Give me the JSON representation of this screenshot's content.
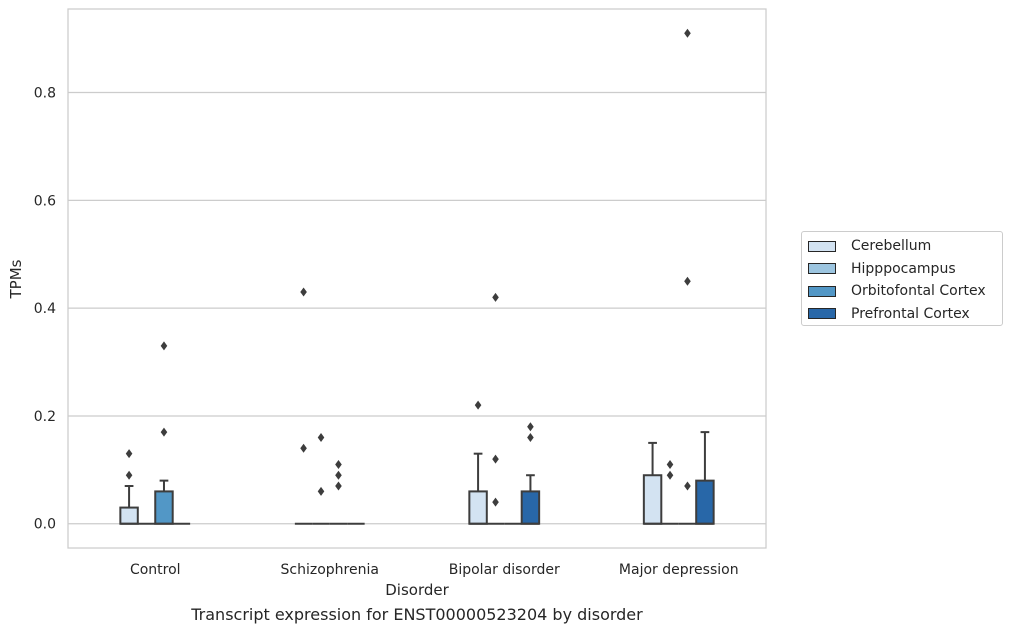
{
  "chart_data": {
    "type": "box",
    "caption": "Transcript expression for ENST00000523204 by disorder",
    "xlabel": "Disorder",
    "ylabel": "TPMs",
    "ylim": [
      -0.045,
      0.955
    ],
    "yticks": [
      0.0,
      0.2,
      0.4,
      0.6,
      0.8
    ],
    "ytick_labels": [
      "0.0",
      "0.2",
      "0.4",
      "0.6",
      "0.8"
    ],
    "grid": "horizontal",
    "legend_position": "right",
    "categories": [
      "Control",
      "Schizophrenia",
      "Bipolar disorder",
      "Major depression"
    ],
    "series": [
      {
        "name": "Cerebellum",
        "color": "#d3e3f2",
        "boxes": [
          {
            "q1": 0,
            "median": 0,
            "q3": 0.03,
            "whisker_low": 0,
            "whisker_high": 0.07,
            "outliers": [
              0.09,
              0.13
            ]
          },
          {
            "q1": 0,
            "median": 0,
            "q3": 0,
            "whisker_low": 0,
            "whisker_high": 0,
            "outliers": [
              0.14,
              0.43
            ]
          },
          {
            "q1": 0,
            "median": 0,
            "q3": 0.06,
            "whisker_low": 0,
            "whisker_high": 0.13,
            "outliers": [
              0.22
            ]
          },
          {
            "q1": 0,
            "median": 0,
            "q3": 0.09,
            "whisker_low": 0,
            "whisker_high": 0.15,
            "outliers": []
          }
        ]
      },
      {
        "name": "Hipppocampus",
        "color": "#9cc5e0",
        "boxes": [
          {
            "q1": 0,
            "median": 0,
            "q3": 0,
            "whisker_low": 0,
            "whisker_high": 0,
            "outliers": []
          },
          {
            "q1": 0,
            "median": 0,
            "q3": 0,
            "whisker_low": 0,
            "whisker_high": 0,
            "outliers": [
              0.06,
              0.16
            ]
          },
          {
            "q1": 0,
            "median": 0,
            "q3": 0,
            "whisker_low": 0,
            "whisker_high": 0,
            "outliers": [
              0.04,
              0.12,
              0.42
            ]
          },
          {
            "q1": 0,
            "median": 0,
            "q3": 0,
            "whisker_low": 0,
            "whisker_high": 0,
            "outliers": [
              0.09,
              0.11
            ]
          }
        ]
      },
      {
        "name": "Orbitofontal Cortex",
        "color": "#5297c6",
        "boxes": [
          {
            "q1": 0,
            "median": 0,
            "q3": 0.06,
            "whisker_low": 0,
            "whisker_high": 0.08,
            "outliers": [
              0.17,
              0.33
            ]
          },
          {
            "q1": 0,
            "median": 0,
            "q3": 0,
            "whisker_low": 0,
            "whisker_high": 0,
            "outliers": [
              0.07,
              0.09,
              0.11
            ]
          },
          {
            "q1": 0,
            "median": 0,
            "q3": 0,
            "whisker_low": 0,
            "whisker_high": 0,
            "outliers": []
          },
          {
            "q1": 0,
            "median": 0,
            "q3": 0,
            "whisker_low": 0,
            "whisker_high": 0,
            "outliers": [
              0.07,
              0.45,
              0.91
            ]
          }
        ]
      },
      {
        "name": "Prefrontal Cortex",
        "color": "#2867a8",
        "boxes": [
          {
            "q1": 0,
            "median": 0,
            "q3": 0,
            "whisker_low": 0,
            "whisker_high": 0,
            "outliers": []
          },
          {
            "q1": 0,
            "median": 0,
            "q3": 0,
            "whisker_low": 0,
            "whisker_high": 0,
            "outliers": []
          },
          {
            "q1": 0,
            "median": 0,
            "q3": 0.06,
            "whisker_low": 0,
            "whisker_high": 0.09,
            "outliers": [
              0.16,
              0.18
            ]
          },
          {
            "q1": 0,
            "median": 0,
            "q3": 0.08,
            "whisker_low": 0,
            "whisker_high": 0.17,
            "outliers": []
          }
        ]
      }
    ]
  }
}
